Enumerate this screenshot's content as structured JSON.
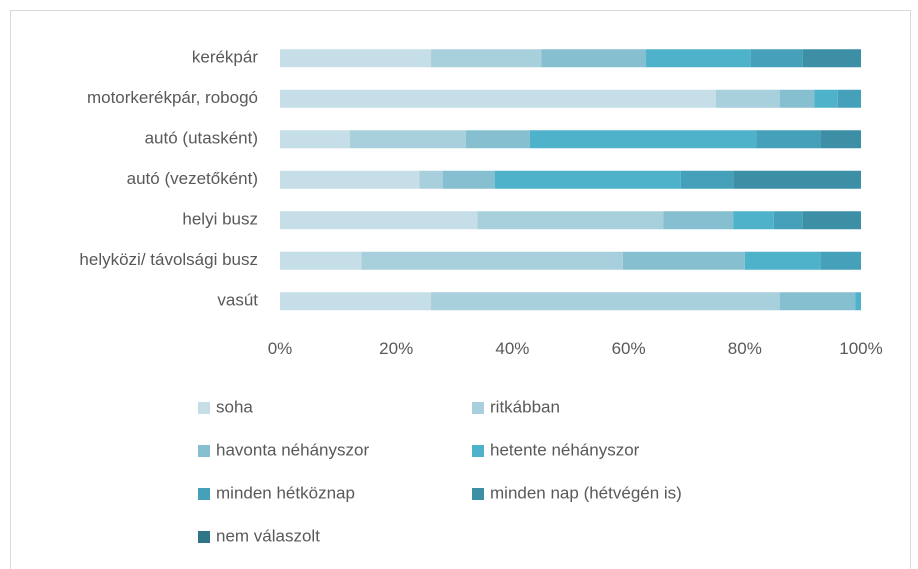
{
  "chart_data": {
    "type": "stacked-barh",
    "categories": [
      "kerékpár",
      "motorkerékpár, robogó",
      "autó (utasként)",
      "autó (vezetőként)",
      "helyi busz",
      "helyközi/ távolsági busz",
      "vasút"
    ],
    "series": [
      {
        "name": "soha",
        "color": "#c6dee7",
        "values": [
          26,
          75,
          12,
          24,
          34,
          14,
          26
        ]
      },
      {
        "name": "ritkábban",
        "color": "#a8cfdc",
        "values": [
          19,
          11,
          20,
          4,
          32,
          45,
          60
        ]
      },
      {
        "name": "havonta néhányszor",
        "color": "#86bfcf",
        "values": [
          18,
          6,
          11,
          9,
          12,
          21,
          13
        ]
      },
      {
        "name": "hetente néhányszor",
        "color": "#4fb2cb",
        "values": [
          18,
          4,
          39,
          32,
          7,
          13,
          1
        ]
      },
      {
        "name": "minden hétköznap",
        "color": "#45a0b9",
        "values": [
          9,
          4,
          11,
          9,
          5,
          7,
          0
        ]
      },
      {
        "name": "minden nap (hétvégén is)",
        "color": "#3d8fa5",
        "values": [
          10,
          0,
          7,
          22,
          10,
          0,
          0
        ]
      },
      {
        "name": "nem válaszolt",
        "color": "#2f7487",
        "values": [
          0,
          0,
          0,
          0,
          0,
          0,
          0
        ]
      }
    ],
    "xlim": [
      0,
      100
    ],
    "xticks": [
      {
        "value": 0,
        "label": "0%"
      },
      {
        "value": 20,
        "label": "20%"
      },
      {
        "value": 40,
        "label": "40%"
      },
      {
        "value": 60,
        "label": "60%"
      },
      {
        "value": 80,
        "label": "80%"
      },
      {
        "value": 100,
        "label": "100%"
      }
    ],
    "grid": false,
    "legend": "bottom"
  }
}
